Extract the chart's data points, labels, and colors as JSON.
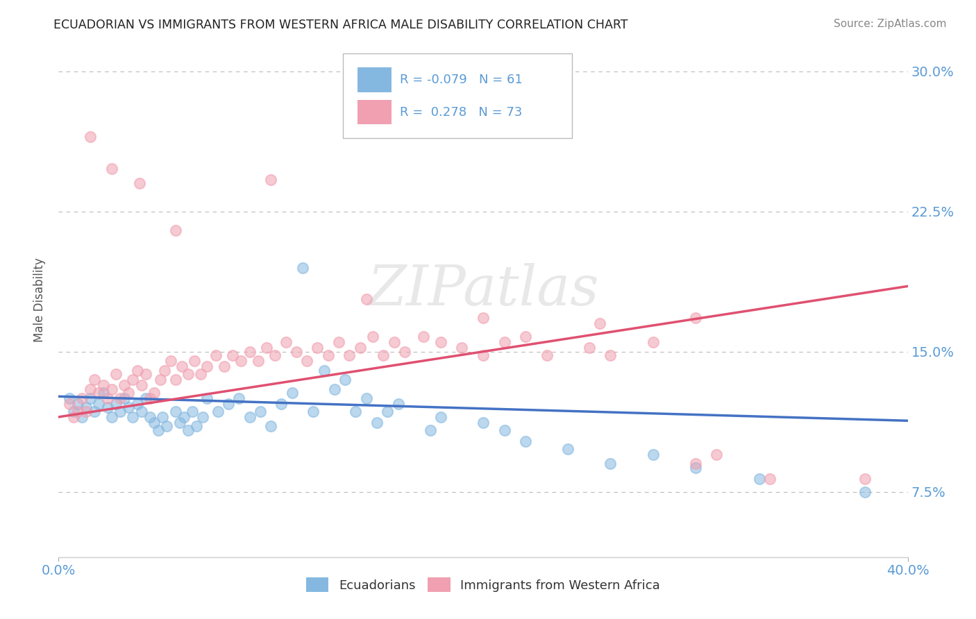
{
  "title": "ECUADORIAN VS IMMIGRANTS FROM WESTERN AFRICA MALE DISABILITY CORRELATION CHART",
  "source": "Source: ZipAtlas.com",
  "ylabel": "Male Disability",
  "xlim": [
    0.0,
    0.4
  ],
  "ylim": [
    0.04,
    0.315
  ],
  "x_ticks": [
    0.0,
    0.4
  ],
  "x_tick_labels": [
    "0.0%",
    "40.0%"
  ],
  "y_ticks": [
    0.075,
    0.15,
    0.225,
    0.3
  ],
  "y_tick_labels": [
    "7.5%",
    "15.0%",
    "22.5%",
    "30.0%"
  ],
  "grid_color": "#bbbbbb",
  "background_color": "#ffffff",
  "blue_color": "#85b8e0",
  "pink_color": "#f0a0b0",
  "blue_line_color": "#4472c4",
  "pink_line_color": "#e05070",
  "r_blue": "-0.079",
  "n_blue": "61",
  "r_pink": "0.278",
  "n_pink": "73",
  "watermark": "ZIPatlas",
  "tick_color": "#5b9bd5",
  "blue_scatter": [
    [
      0.005,
      0.125
    ],
    [
      0.007,
      0.118
    ],
    [
      0.009,
      0.122
    ],
    [
      0.011,
      0.115
    ],
    [
      0.013,
      0.12
    ],
    [
      0.015,
      0.125
    ],
    [
      0.017,
      0.118
    ],
    [
      0.019,
      0.122
    ],
    [
      0.021,
      0.128
    ],
    [
      0.023,
      0.12
    ],
    [
      0.025,
      0.115
    ],
    [
      0.027,
      0.122
    ],
    [
      0.029,
      0.118
    ],
    [
      0.031,
      0.125
    ],
    [
      0.033,
      0.12
    ],
    [
      0.035,
      0.115
    ],
    [
      0.037,
      0.122
    ],
    [
      0.039,
      0.118
    ],
    [
      0.041,
      0.125
    ],
    [
      0.043,
      0.115
    ],
    [
      0.045,
      0.112
    ],
    [
      0.047,
      0.108
    ],
    [
      0.049,
      0.115
    ],
    [
      0.051,
      0.11
    ],
    [
      0.055,
      0.118
    ],
    [
      0.057,
      0.112
    ],
    [
      0.059,
      0.115
    ],
    [
      0.061,
      0.108
    ],
    [
      0.063,
      0.118
    ],
    [
      0.065,
      0.11
    ],
    [
      0.068,
      0.115
    ],
    [
      0.07,
      0.125
    ],
    [
      0.075,
      0.118
    ],
    [
      0.08,
      0.122
    ],
    [
      0.085,
      0.125
    ],
    [
      0.09,
      0.115
    ],
    [
      0.095,
      0.118
    ],
    [
      0.1,
      0.11
    ],
    [
      0.105,
      0.122
    ],
    [
      0.11,
      0.128
    ],
    [
      0.115,
      0.195
    ],
    [
      0.12,
      0.118
    ],
    [
      0.125,
      0.14
    ],
    [
      0.13,
      0.13
    ],
    [
      0.135,
      0.135
    ],
    [
      0.14,
      0.118
    ],
    [
      0.145,
      0.125
    ],
    [
      0.15,
      0.112
    ],
    [
      0.155,
      0.118
    ],
    [
      0.16,
      0.122
    ],
    [
      0.175,
      0.108
    ],
    [
      0.18,
      0.115
    ],
    [
      0.2,
      0.112
    ],
    [
      0.21,
      0.108
    ],
    [
      0.22,
      0.102
    ],
    [
      0.24,
      0.098
    ],
    [
      0.26,
      0.09
    ],
    [
      0.28,
      0.095
    ],
    [
      0.3,
      0.088
    ],
    [
      0.33,
      0.082
    ],
    [
      0.38,
      0.075
    ]
  ],
  "pink_scatter": [
    [
      0.005,
      0.122
    ],
    [
      0.007,
      0.115
    ],
    [
      0.009,
      0.118
    ],
    [
      0.011,
      0.125
    ],
    [
      0.013,
      0.118
    ],
    [
      0.015,
      0.13
    ],
    [
      0.017,
      0.135
    ],
    [
      0.019,
      0.128
    ],
    [
      0.021,
      0.132
    ],
    [
      0.023,
      0.125
    ],
    [
      0.025,
      0.13
    ],
    [
      0.027,
      0.138
    ],
    [
      0.029,
      0.125
    ],
    [
      0.031,
      0.132
    ],
    [
      0.033,
      0.128
    ],
    [
      0.035,
      0.135
    ],
    [
      0.037,
      0.14
    ],
    [
      0.039,
      0.132
    ],
    [
      0.041,
      0.138
    ],
    [
      0.043,
      0.125
    ],
    [
      0.045,
      0.128
    ],
    [
      0.048,
      0.135
    ],
    [
      0.05,
      0.14
    ],
    [
      0.053,
      0.145
    ],
    [
      0.055,
      0.135
    ],
    [
      0.058,
      0.142
    ],
    [
      0.061,
      0.138
    ],
    [
      0.064,
      0.145
    ],
    [
      0.067,
      0.138
    ],
    [
      0.07,
      0.142
    ],
    [
      0.074,
      0.148
    ],
    [
      0.078,
      0.142
    ],
    [
      0.082,
      0.148
    ],
    [
      0.086,
      0.145
    ],
    [
      0.09,
      0.15
    ],
    [
      0.094,
      0.145
    ],
    [
      0.098,
      0.152
    ],
    [
      0.102,
      0.148
    ],
    [
      0.107,
      0.155
    ],
    [
      0.112,
      0.15
    ],
    [
      0.117,
      0.145
    ],
    [
      0.122,
      0.152
    ],
    [
      0.127,
      0.148
    ],
    [
      0.132,
      0.155
    ],
    [
      0.137,
      0.148
    ],
    [
      0.142,
      0.152
    ],
    [
      0.148,
      0.158
    ],
    [
      0.153,
      0.148
    ],
    [
      0.158,
      0.155
    ],
    [
      0.163,
      0.15
    ],
    [
      0.172,
      0.158
    ],
    [
      0.18,
      0.155
    ],
    [
      0.19,
      0.152
    ],
    [
      0.2,
      0.148
    ],
    [
      0.21,
      0.155
    ],
    [
      0.22,
      0.158
    ],
    [
      0.23,
      0.148
    ],
    [
      0.25,
      0.152
    ],
    [
      0.26,
      0.148
    ],
    [
      0.28,
      0.155
    ],
    [
      0.3,
      0.09
    ],
    [
      0.31,
      0.095
    ],
    [
      0.335,
      0.082
    ],
    [
      0.38,
      0.082
    ],
    [
      0.015,
      0.265
    ],
    [
      0.025,
      0.248
    ],
    [
      0.038,
      0.24
    ],
    [
      0.055,
      0.215
    ],
    [
      0.1,
      0.242
    ],
    [
      0.145,
      0.178
    ],
    [
      0.2,
      0.168
    ],
    [
      0.255,
      0.165
    ],
    [
      0.3,
      0.168
    ]
  ]
}
